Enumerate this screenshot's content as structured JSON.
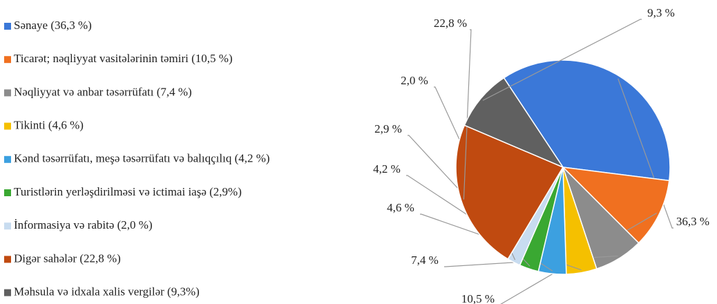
{
  "chart_data": {
    "type": "pie",
    "categories": [
      "Sənaye (36,3 %)",
      "Ticarət; nəqliyyat vasitələrinin təmiri (10,5 %)",
      "Nəqliyyat və anbar təsərrüfatı (7,4 %)",
      "Tikinti (4,6 %)",
      "Kənd təsərrüfatı, meşə təsərrüfatı və balıqçılıq  (4,2 %)",
      "Turistlərin yerləşdirilməsi  və ictimai iaşə (2,9%)",
      "İnformasiya və rabitə (2,0 %)",
      "Digər sahələr (22,8 %)",
      "Məhsula və idxala xalis vergilər (9,3%)"
    ],
    "values": [
      36.3,
      10.5,
      7.4,
      4.6,
      4.2,
      2.9,
      2.0,
      22.8,
      9.3
    ],
    "value_labels": [
      "36,3 %",
      "10,5 %",
      "7,4 %",
      "4,6 %",
      "4,2 %",
      "2,9 %",
      "2,0 %",
      "22,8 %",
      "9,3 %"
    ],
    "colors": [
      "#3b78d8",
      "#f07020",
      "#8c8c8c",
      "#f5c000",
      "#3ca0e0",
      "#3aa832",
      "#c8dcf0",
      "#c04a10",
      "#606060"
    ]
  }
}
